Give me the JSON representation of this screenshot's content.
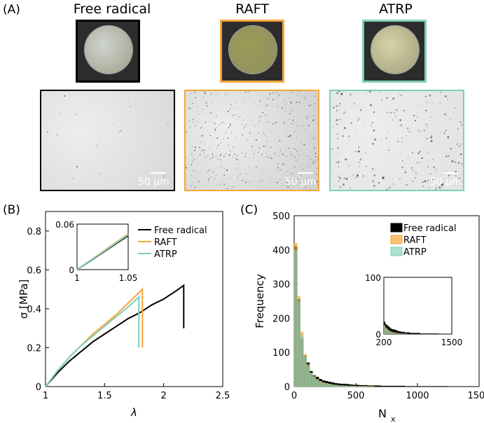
{
  "panel_a": {
    "label": "(A)",
    "columns": [
      {
        "title": "Free radical",
        "border_color": "#000000",
        "scale_text": "50 μm",
        "disc_color": "#cfd3cf",
        "micro_bg": "#d8d8d8"
      },
      {
        "title": "RAFT",
        "border_color": "#f5a63a",
        "scale_text": "50 μm",
        "disc_color": "#9d9b55",
        "micro_bg": "#cfcfcf"
      },
      {
        "title": "ATRP",
        "border_color": "#7fcfb8",
        "scale_text": "50 μm",
        "disc_color": "#d7d2a8",
        "micro_bg": "#e2e2e2"
      }
    ]
  },
  "panel_b": {
    "label": "(B)"
  },
  "panel_c": {
    "label": "(C)"
  },
  "chart_data": [
    {
      "type": "line",
      "xlabel": "λ",
      "ylabel": "σ [MPa]",
      "xlim": [
        1,
        2.5
      ],
      "ylim": [
        0,
        0.9
      ],
      "xticks": [
        "1",
        "1.5",
        "2",
        "2.5"
      ],
      "yticks": [
        "0",
        "0.2",
        "0.4",
        "0.6",
        "0.8"
      ],
      "legend_position": "top-right",
      "series": [
        {
          "name": "Free radical",
          "color": "#000000",
          "x": [
            1.0,
            1.1,
            1.2,
            1.3,
            1.4,
            1.5,
            1.6,
            1.7,
            1.8,
            1.9,
            2.0,
            2.1,
            2.17,
            2.17
          ],
          "y": [
            0.0,
            0.07,
            0.13,
            0.18,
            0.23,
            0.27,
            0.31,
            0.35,
            0.38,
            0.42,
            0.45,
            0.49,
            0.52,
            0.3
          ]
        },
        {
          "name": "RAFT",
          "color": "#f5a63a",
          "x": [
            1.0,
            1.1,
            1.2,
            1.3,
            1.4,
            1.5,
            1.6,
            1.7,
            1.82,
            1.82
          ],
          "y": [
            0.0,
            0.08,
            0.15,
            0.21,
            0.27,
            0.32,
            0.37,
            0.43,
            0.5,
            0.2
          ]
        },
        {
          "name": "ATRP",
          "color": "#7fcfb8",
          "x": [
            1.0,
            1.1,
            1.2,
            1.3,
            1.4,
            1.5,
            1.6,
            1.7,
            1.79,
            1.79
          ],
          "y": [
            0.0,
            0.08,
            0.15,
            0.21,
            0.26,
            0.31,
            0.36,
            0.41,
            0.46,
            0.2
          ]
        }
      ],
      "inset": {
        "xlim": [
          1,
          1.05
        ],
        "ylim": [
          0,
          0.06
        ],
        "xticks": [
          "1",
          "1.05"
        ],
        "yticks": [
          "0",
          "0.06"
        ],
        "series": [
          {
            "name": "Free radical",
            "color": "#000000",
            "x": [
              1.0,
              1.05
            ],
            "y": [
              0.0,
              0.045
            ]
          },
          {
            "name": "RAFT",
            "color": "#f5a63a",
            "x": [
              1.0,
              1.05
            ],
            "y": [
              0.0,
              0.047
            ]
          },
          {
            "name": "ATRP",
            "color": "#7fcfb8",
            "x": [
              1.0,
              1.05
            ],
            "y": [
              0.0,
              0.046
            ]
          }
        ]
      }
    },
    {
      "type": "bar",
      "xlabel": "N",
      "xlabel_subscript": "x",
      "ylabel": "Frequency",
      "xlim": [
        0,
        1500
      ],
      "ylim": [
        0,
        500
      ],
      "xticks": [
        "0",
        "500",
        "1000",
        "1500"
      ],
      "yticks": [
        "0",
        "100",
        "200",
        "300",
        "400",
        "500"
      ],
      "legend_position": "top-right",
      "bin_width": 25,
      "series": [
        {
          "name": "Free radical",
          "color": "#000000",
          "values": [
            410,
            255,
            140,
            90,
            70,
            45,
            32,
            28,
            22,
            18,
            16,
            14,
            12,
            10,
            9,
            8,
            8,
            7,
            6,
            5,
            5,
            4,
            4,
            4,
            3,
            3,
            3,
            3,
            2,
            2,
            2,
            2,
            2,
            2,
            2,
            2,
            1,
            1,
            1,
            1,
            1,
            1,
            1,
            1,
            1,
            1,
            1,
            1,
            1,
            1,
            0,
            0,
            0,
            0
          ]
        },
        {
          "name": "RAFT",
          "color": "#f5a63a",
          "values": [
            420,
            265,
            160,
            95,
            65,
            40,
            30,
            22,
            16,
            12,
            10,
            8,
            6,
            5,
            4,
            3,
            3,
            2,
            2,
            2,
            1,
            1,
            1,
            1,
            1,
            1,
            0,
            0,
            0,
            0,
            0,
            0,
            0,
            0,
            0,
            0,
            0,
            0,
            0,
            0,
            0,
            0,
            0,
            0,
            0,
            0,
            0,
            0,
            0,
            0,
            0,
            0,
            0,
            0
          ]
        },
        {
          "name": "ATRP",
          "color": "#7fcfb8",
          "values": [
            400,
            250,
            150,
            88,
            60,
            40,
            28,
            20,
            15,
            11,
            9,
            7,
            5,
            4,
            3,
            3,
            2,
            2,
            2,
            1,
            1,
            1,
            1,
            1,
            0,
            0,
            0,
            0,
            0,
            0,
            0,
            0,
            0,
            0,
            0,
            0,
            0,
            0,
            0,
            0,
            0,
            0,
            0,
            0,
            0,
            0,
            0,
            0,
            0,
            0,
            0,
            0,
            0,
            0
          ]
        }
      ],
      "inset": {
        "xlim": [
          200,
          1500
        ],
        "ylim": [
          0,
          100
        ],
        "xticks": [
          "200",
          "1500"
        ],
        "yticks": [
          "0",
          "100"
        ]
      }
    }
  ]
}
